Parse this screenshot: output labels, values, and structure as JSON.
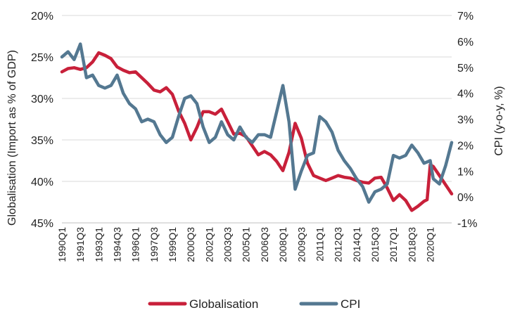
{
  "chart_data": {
    "type": "line",
    "ylabel_left": "Globalisation (Import as % of GDP)",
    "ylabel_right": "CPI (y-o-y, %)",
    "left_axis": {
      "ticks": [
        "20%",
        "25%",
        "30%",
        "35%",
        "40%",
        "45%"
      ],
      "range": [
        20,
        45
      ],
      "inverted": true
    },
    "right_axis": {
      "ticks": [
        "7%",
        "6%",
        "5%",
        "4%",
        "3%",
        "2%",
        "1%",
        "0%",
        "-1%"
      ],
      "range": [
        -1,
        7
      ]
    },
    "x_ticks": [
      "1990Q1",
      "1991Q3",
      "1993Q1",
      "1994Q3",
      "1996Q1",
      "1997Q3",
      "1999Q1",
      "2000Q3",
      "2002Q1",
      "2003Q3",
      "2005Q1",
      "2006Q3",
      "2008Q1",
      "2009Q3",
      "2011Q1",
      "2012Q3",
      "2014Q1",
      "2015Q3",
      "2017Q1",
      "2018Q3",
      "2020Q1"
    ],
    "x_range": [
      "1990Q1",
      "2021Q4"
    ],
    "grid": "horizontal",
    "legend": "bottom",
    "series": [
      {
        "name": "Globalisation",
        "axis": "left",
        "color": "#c8203a",
        "points": [
          [
            "1990Q1",
            26.8
          ],
          [
            "1990Q3",
            26.4
          ],
          [
            "1991Q1",
            26.3
          ],
          [
            "1991Q3",
            26.5
          ],
          [
            "1992Q1",
            26.3
          ],
          [
            "1992Q3",
            25.6
          ],
          [
            "1993Q1",
            24.5
          ],
          [
            "1993Q3",
            24.8
          ],
          [
            "1994Q1",
            25.2
          ],
          [
            "1994Q3",
            26.2
          ],
          [
            "1995Q1",
            26.6
          ],
          [
            "1995Q3",
            26.9
          ],
          [
            "1996Q1",
            26.8
          ],
          [
            "1996Q3",
            27.5
          ],
          [
            "1997Q1",
            28.2
          ],
          [
            "1997Q3",
            29.0
          ],
          [
            "1998Q1",
            29.2
          ],
          [
            "1998Q3",
            28.7
          ],
          [
            "1999Q1",
            29.5
          ],
          [
            "1999Q3",
            31.5
          ],
          [
            "2000Q1",
            33.0
          ],
          [
            "2000Q3",
            35.0
          ],
          [
            "2001Q1",
            33.5
          ],
          [
            "2001Q3",
            31.6
          ],
          [
            "2002Q1",
            31.6
          ],
          [
            "2002Q3",
            31.9
          ],
          [
            "2003Q1",
            31.3
          ],
          [
            "2003Q3",
            32.8
          ],
          [
            "2004Q1",
            34.3
          ],
          [
            "2004Q3",
            34.2
          ],
          [
            "2005Q1",
            34.6
          ],
          [
            "2005Q3",
            35.7
          ],
          [
            "2006Q1",
            36.8
          ],
          [
            "2006Q3",
            36.4
          ],
          [
            "2007Q1",
            36.8
          ],
          [
            "2007Q3",
            37.6
          ],
          [
            "2008Q1",
            38.7
          ],
          [
            "2008Q3",
            36.5
          ],
          [
            "2009Q1",
            33.0
          ],
          [
            "2009Q3",
            34.8
          ],
          [
            "2010Q1",
            37.8
          ],
          [
            "2010Q3",
            39.3
          ],
          [
            "2011Q1",
            39.6
          ],
          [
            "2011Q3",
            39.9
          ],
          [
            "2012Q1",
            39.6
          ],
          [
            "2012Q3",
            39.3
          ],
          [
            "2013Q1",
            39.5
          ],
          [
            "2013Q3",
            39.6
          ],
          [
            "2014Q1",
            39.9
          ],
          [
            "2014Q3",
            40.1
          ],
          [
            "2015Q1",
            40.2
          ],
          [
            "2015Q3",
            39.6
          ],
          [
            "2016Q1",
            39.5
          ],
          [
            "2016Q3",
            40.8
          ],
          [
            "2017Q1",
            42.3
          ],
          [
            "2017Q3",
            41.6
          ],
          [
            "2018Q1",
            42.3
          ],
          [
            "2018Q3",
            43.5
          ],
          [
            "2019Q1",
            43.0
          ],
          [
            "2019Q3",
            42.4
          ],
          [
            "2019Q4",
            42.2
          ],
          [
            "2020Q1",
            38.0
          ],
          [
            "2020Q2",
            38.2
          ],
          [
            "2020Q4",
            39.3
          ],
          [
            "2021Q2",
            40.4
          ],
          [
            "2021Q4",
            41.5
          ]
        ]
      },
      {
        "name": "CPI",
        "axis": "right",
        "color": "#547891",
        "points": [
          [
            "1990Q1",
            5.4
          ],
          [
            "1990Q3",
            5.6
          ],
          [
            "1991Q1",
            5.3
          ],
          [
            "1991Q3",
            5.9
          ],
          [
            "1992Q1",
            4.6
          ],
          [
            "1992Q3",
            4.7
          ],
          [
            "1993Q1",
            4.3
          ],
          [
            "1993Q3",
            4.2
          ],
          [
            "1994Q1",
            4.3
          ],
          [
            "1994Q3",
            4.7
          ],
          [
            "1995Q1",
            4.0
          ],
          [
            "1995Q3",
            3.6
          ],
          [
            "1996Q1",
            3.4
          ],
          [
            "1996Q3",
            2.9
          ],
          [
            "1997Q1",
            3.0
          ],
          [
            "1997Q3",
            2.9
          ],
          [
            "1998Q1",
            2.4
          ],
          [
            "1998Q3",
            2.1
          ],
          [
            "1999Q1",
            2.3
          ],
          [
            "1999Q3",
            3.1
          ],
          [
            "2000Q1",
            3.8
          ],
          [
            "2000Q3",
            3.9
          ],
          [
            "2001Q1",
            3.6
          ],
          [
            "2001Q3",
            2.7
          ],
          [
            "2002Q1",
            2.1
          ],
          [
            "2002Q3",
            2.3
          ],
          [
            "2003Q1",
            2.9
          ],
          [
            "2003Q3",
            2.4
          ],
          [
            "2004Q1",
            2.2
          ],
          [
            "2004Q3",
            2.7
          ],
          [
            "2005Q1",
            2.3
          ],
          [
            "2005Q3",
            2.1
          ],
          [
            "2006Q1",
            2.4
          ],
          [
            "2006Q3",
            2.4
          ],
          [
            "2007Q1",
            2.3
          ],
          [
            "2007Q3",
            3.3
          ],
          [
            "2008Q1",
            4.3
          ],
          [
            "2008Q3",
            2.9
          ],
          [
            "2009Q1",
            0.3
          ],
          [
            "2009Q3",
            1.0
          ],
          [
            "2010Q1",
            1.6
          ],
          [
            "2010Q3",
            1.7
          ],
          [
            "2011Q1",
            3.1
          ],
          [
            "2011Q3",
            2.9
          ],
          [
            "2012Q1",
            2.5
          ],
          [
            "2012Q3",
            1.8
          ],
          [
            "2013Q1",
            1.4
          ],
          [
            "2013Q3",
            1.1
          ],
          [
            "2014Q1",
            0.7
          ],
          [
            "2014Q3",
            0.4
          ],
          [
            "2015Q1",
            -0.2
          ],
          [
            "2015Q3",
            0.2
          ],
          [
            "2016Q1",
            0.3
          ],
          [
            "2016Q3",
            0.5
          ],
          [
            "2017Q1",
            1.6
          ],
          [
            "2017Q3",
            1.5
          ],
          [
            "2018Q1",
            1.6
          ],
          [
            "2018Q3",
            2.0
          ],
          [
            "2019Q1",
            1.7
          ],
          [
            "2019Q3",
            1.3
          ],
          [
            "2020Q1",
            1.4
          ],
          [
            "2020Q2",
            0.7
          ],
          [
            "2020Q4",
            0.5
          ],
          [
            "2021Q2",
            1.2
          ],
          [
            "2021Q4",
            2.1
          ]
        ]
      }
    ]
  }
}
